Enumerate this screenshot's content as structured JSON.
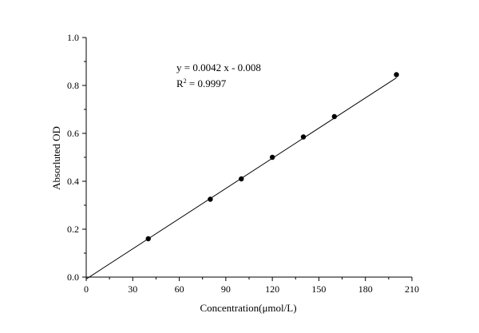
{
  "chart_data": {
    "type": "scatter",
    "title": "",
    "xlabel": "Concentration(μmol/L)",
    "ylabel": "Absorluted OD",
    "xlim": [
      0,
      210
    ],
    "ylim": [
      0,
      1.0
    ],
    "x_ticks": [
      0,
      30,
      60,
      90,
      120,
      150,
      180,
      210
    ],
    "x_tick_labels": [
      "0",
      "30",
      "60",
      "90",
      "120",
      "150",
      "180",
      "210"
    ],
    "y_ticks": [
      0,
      0.2,
      0.4,
      0.6,
      0.8,
      1.0
    ],
    "y_tick_labels": [
      "0.0",
      "0.2",
      "0.4",
      "0.6",
      "0.8",
      "1.0"
    ],
    "grid": false,
    "legend": "none",
    "series": [
      {
        "x": [
          40,
          80,
          100,
          120,
          140,
          160,
          200
        ],
        "y": [
          0.16,
          0.325,
          0.41,
          0.5,
          0.585,
          0.67,
          0.845
        ]
      }
    ],
    "fit_line": {
      "slope": 0.0042,
      "intercept": -0.008,
      "x_range": [
        0,
        200
      ]
    },
    "annotations": {
      "equation": "y = 0.0042 x - 0.008",
      "r2_prefix": "R",
      "r2_sup": "2",
      "r2_suffix": " = 0.9997"
    },
    "colors": {
      "marks": "#000000",
      "axes": "#000000"
    }
  }
}
